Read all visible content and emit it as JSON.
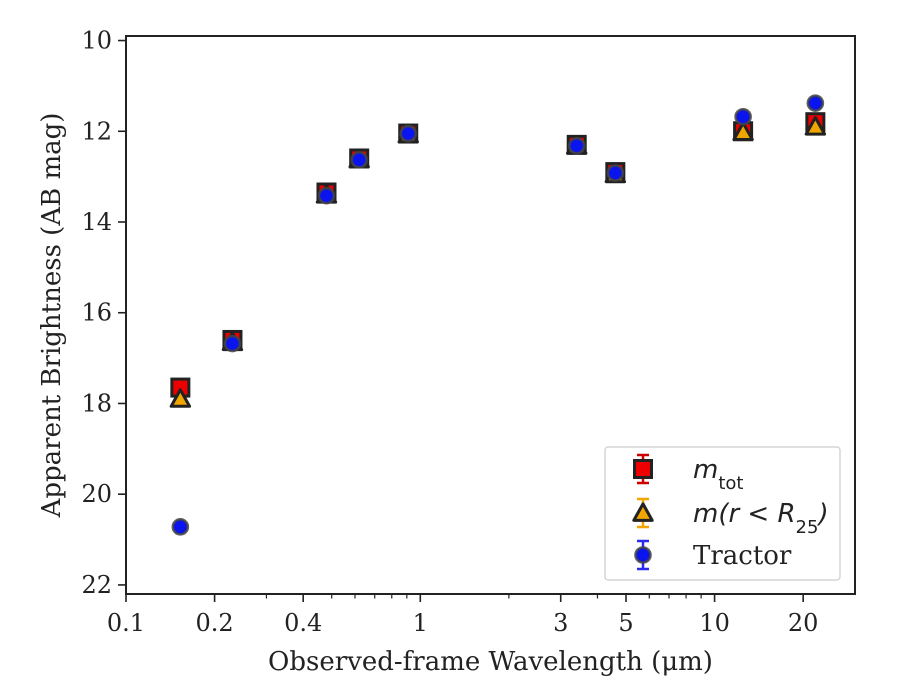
{
  "chart_data": {
    "type": "scatter",
    "xlabel": "Observed-frame Wavelength (μm)",
    "ylabel": "Apparent Brightness (AB mag)",
    "xscale": "log",
    "xlim": [
      0.1,
      30
    ],
    "ylim": [
      22.2,
      9.9
    ],
    "y_inverted": true,
    "x_ticks": [
      {
        "value": 0.1,
        "label": "0.1"
      },
      {
        "value": 0.2,
        "label": "0.2"
      },
      {
        "value": 0.4,
        "label": "0.4"
      },
      {
        "value": 1,
        "label": "1"
      },
      {
        "value": 3,
        "label": "3"
      },
      {
        "value": 5,
        "label": "5"
      },
      {
        "value": 10,
        "label": "10"
      },
      {
        "value": 20,
        "label": "20"
      }
    ],
    "y_ticks": [
      {
        "value": 10,
        "label": "10"
      },
      {
        "value": 12,
        "label": "12"
      },
      {
        "value": 14,
        "label": "14"
      },
      {
        "value": 16,
        "label": "16"
      },
      {
        "value": 18,
        "label": "18"
      },
      {
        "value": 20,
        "label": "20"
      },
      {
        "value": 22,
        "label": "22"
      }
    ],
    "grid": false,
    "legend": {
      "position": "bottom-right",
      "entries": [
        {
          "series": "mtot",
          "label_main": "m",
          "label_sub": "tot"
        },
        {
          "series": "mr25",
          "label_main": "m(r < R",
          "label_sub": "25",
          "label_tail": ")"
        },
        {
          "series": "tractor",
          "label_main": "Tractor"
        }
      ]
    },
    "series": [
      {
        "name": "m_tot",
        "key": "mtot",
        "marker": "square",
        "color": "#ee0000",
        "edge_color": "#222222",
        "errorbar_color": "#cc0000",
        "points": [
          {
            "x": 0.153,
            "y": 17.65
          },
          {
            "x": 0.23,
            "y": 16.6
          },
          {
            "x": 0.48,
            "y": 13.35
          },
          {
            "x": 0.62,
            "y": 12.6
          },
          {
            "x": 0.91,
            "y": 12.05
          },
          {
            "x": 3.4,
            "y": 12.3
          },
          {
            "x": 4.6,
            "y": 12.9
          },
          {
            "x": 12.5,
            "y": 12.0
          },
          {
            "x": 22.0,
            "y": 11.8
          }
        ]
      },
      {
        "name": "m(r<R25)",
        "key": "mr25",
        "marker": "triangle",
        "color": "#f0a500",
        "edge_color": "#222222",
        "errorbar_color": "#f0a500",
        "points": [
          {
            "x": 0.153,
            "y": 17.9
          },
          {
            "x": 0.23,
            "y": 16.65
          },
          {
            "x": 0.48,
            "y": 13.4
          },
          {
            "x": 0.62,
            "y": 12.62
          },
          {
            "x": 0.91,
            "y": 12.07
          },
          {
            "x": 3.4,
            "y": 12.32
          },
          {
            "x": 4.6,
            "y": 12.95
          },
          {
            "x": 12.5,
            "y": 12.02
          },
          {
            "x": 22.0,
            "y": 11.9
          }
        ]
      },
      {
        "name": "Tractor",
        "key": "tractor",
        "marker": "circle",
        "color": "#0a14ee",
        "edge_color": "#444444",
        "errorbar_color": "#2a2aee",
        "points": [
          {
            "x": 0.153,
            "y": 20.72
          },
          {
            "x": 0.23,
            "y": 16.68
          },
          {
            "x": 0.48,
            "y": 13.42
          },
          {
            "x": 0.62,
            "y": 12.63
          },
          {
            "x": 0.91,
            "y": 12.05
          },
          {
            "x": 3.4,
            "y": 12.32
          },
          {
            "x": 4.6,
            "y": 12.92
          },
          {
            "x": 12.5,
            "y": 11.68
          },
          {
            "x": 22.0,
            "y": 11.38
          }
        ]
      }
    ]
  }
}
